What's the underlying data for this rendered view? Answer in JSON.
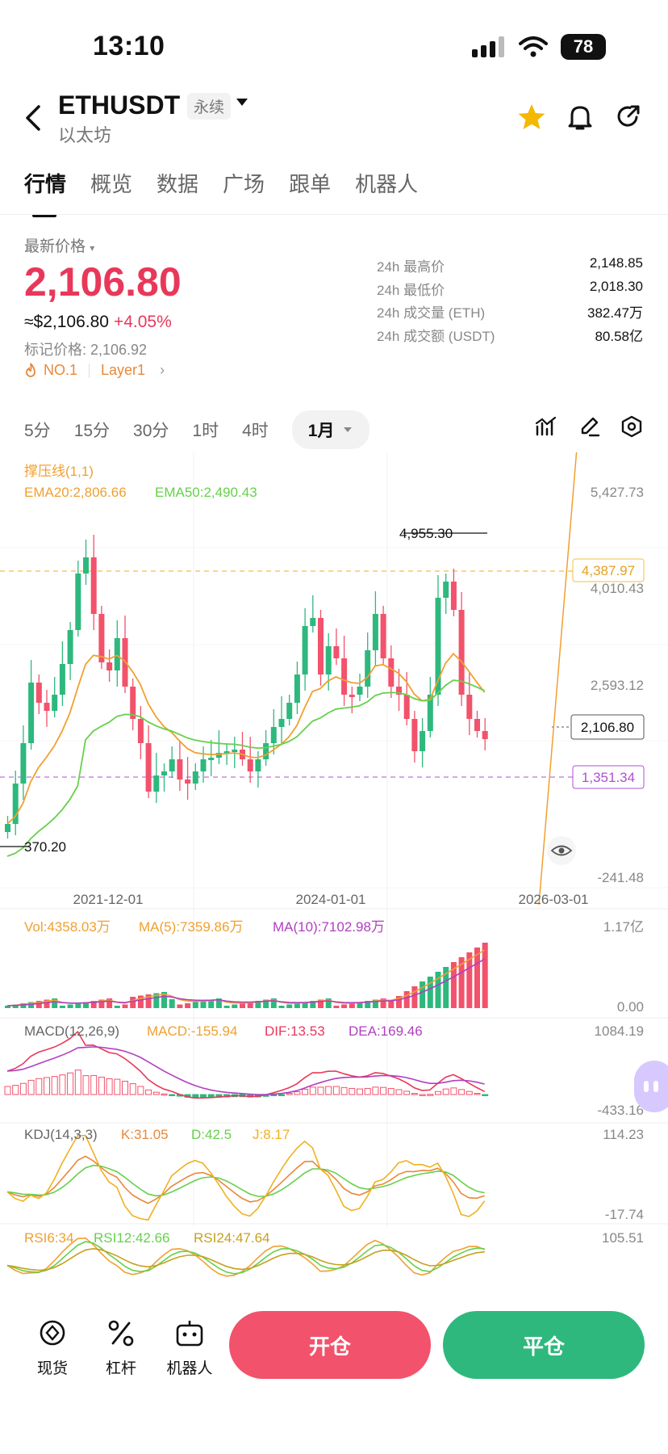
{
  "status_bar": {
    "time": "13:10",
    "battery": "78"
  },
  "header": {
    "symbol": "ETHUSDT",
    "contract_tag": "永续",
    "name": "以太坊"
  },
  "tabs": [
    {
      "label": "行情",
      "active": true
    },
    {
      "label": "概览"
    },
    {
      "label": "数据"
    },
    {
      "label": "广场"
    },
    {
      "label": "跟单"
    },
    {
      "label": "机器人"
    }
  ],
  "ticker": {
    "latest_label": "最新价格",
    "price": "2,106.80",
    "usd_approx": "≈$2,106.80",
    "change_pct": "+4.05%",
    "mark_price": "标记价格: 2,106.92",
    "rank_tag": "NO.1",
    "sector_tag": "Layer1"
  },
  "stats": [
    {
      "label": "24h 最高价",
      "value": "2,148.85"
    },
    {
      "label": "24h 最低价",
      "value": "2,018.30"
    },
    {
      "label": "24h 成交量 (ETH)",
      "value": "382.47万"
    },
    {
      "label": "24h 成交额 (USDT)",
      "value": "80.58亿"
    }
  ],
  "intervals": {
    "options": [
      "5分",
      "15分",
      "30分",
      "1时",
      "4时"
    ],
    "selected": "1月"
  },
  "chart": {
    "indicator_title": "撑压线(1,1)",
    "ema20": "EMA20:2,806.66",
    "ema50": "EMA50:2,490.43",
    "y_ticks": [
      "5,427.73",
      "4,010.43",
      "2,593.12",
      "-241.48"
    ],
    "resistance_label": "4,387.97",
    "current_label": "2,106.80",
    "support_label": "1,351.34",
    "high_marker": "4,955.30",
    "low_marker": "370.20",
    "x_ticks": [
      "2021-12-01",
      "2024-01-01",
      "2026-03-01"
    ],
    "vol": "Vol:4358.03万",
    "vol_ma5": "MA(5):7359.86万",
    "vol_ma10": "MA(10):7102.98万",
    "vol_max": "1.17亿",
    "vol_min": "0.00",
    "macd_title": "MACD(12,26,9)",
    "macd_val": "MACD:-155.94",
    "dif": "DIF:13.53",
    "dea": "DEA:169.46",
    "macd_max": "1084.19",
    "macd_min": "-433.16",
    "kdj_title": "KDJ(14,3,3)",
    "k": "K:31.05",
    "d": "D:42.5",
    "j": "J:8.17",
    "kdj_max": "114.23",
    "kdj_min": "-17.74",
    "rsi6": "RSI6:34",
    "rsi12": "RSI12:42.66",
    "rsi24": "RSI24:47.64",
    "rsi_max": "105.51"
  },
  "bottom": {
    "spot": "现货",
    "leverage": "杠杆",
    "bot": "机器人",
    "open": "开仓",
    "close": "平仓"
  },
  "colors": {
    "up": "#2eb87e",
    "down": "#f2526b",
    "accent_red": "#e8385a",
    "ema20": "#f0a030",
    "ema50": "#66d04c"
  }
}
